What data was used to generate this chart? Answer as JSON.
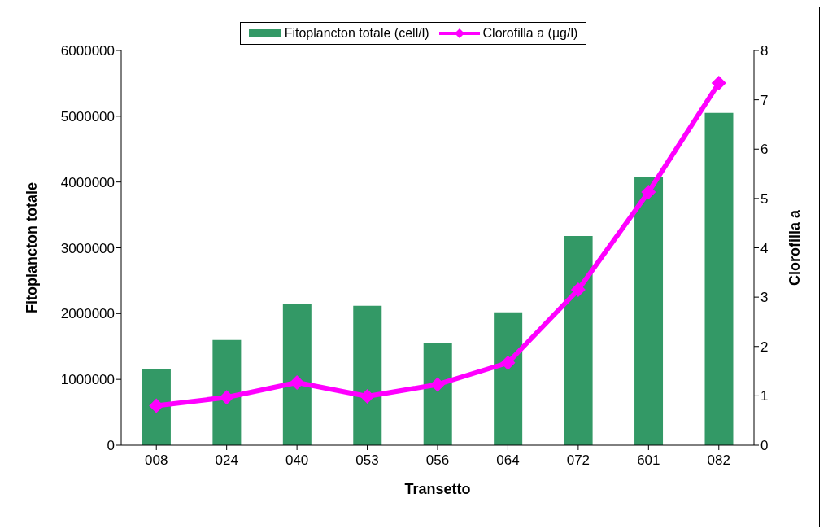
{
  "chart_data": {
    "type": "bar",
    "xlabel": "Transetto",
    "ylabel": "Fitoplancton totale",
    "y2label": "Clorofilla a",
    "categories": [
      "008",
      "024",
      "040",
      "053",
      "056",
      "064",
      "072",
      "601",
      "082"
    ],
    "series": [
      {
        "name": "Fitoplancton totale (cell/l)",
        "color": "#339966",
        "values": [
          1150000,
          1600000,
          2140000,
          2120000,
          1560000,
          2020000,
          3180000,
          4070000,
          5050000
        ]
      },
      {
        "name": "Clorofilla a (µg/l)",
        "type": "line",
        "axis": "y2",
        "color": "#ff00ff",
        "marker": "diamond",
        "values": [
          0.8,
          0.97,
          1.27,
          0.99,
          1.23,
          1.67,
          3.15,
          5.13,
          7.34
        ]
      }
    ],
    "ylim": [
      0,
      6000000
    ],
    "yticks": [
      0,
      1000000,
      2000000,
      3000000,
      4000000,
      5000000,
      6000000
    ],
    "y2lim": [
      0,
      8
    ],
    "y2ticks": [
      0,
      1,
      2,
      3,
      4,
      5,
      6,
      7,
      8
    ],
    "legend": "top"
  }
}
